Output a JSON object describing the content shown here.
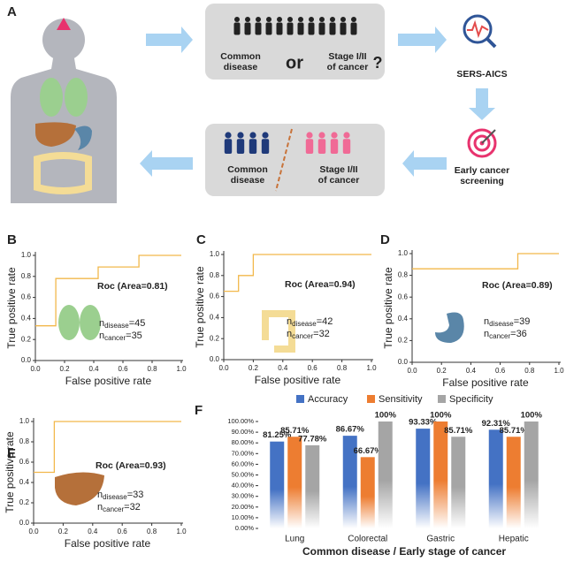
{
  "diagram": {
    "panel_label": "A",
    "query_box": {
      "left": [
        "Common",
        "disease"
      ],
      "or": "or",
      "right": [
        "Stage I/II",
        "of cancer"
      ],
      "question": "?"
    },
    "method": "SERS-AICS",
    "screening": [
      "Early cancer",
      "screening"
    ],
    "result_box": {
      "left": [
        "Common",
        "disease"
      ],
      "right": [
        "Stage I/II",
        "of cancer"
      ]
    }
  },
  "chart_data": [
    {
      "type": "line",
      "panel_label": "B",
      "xlabel": "False positive rate",
      "ylabel": "True positive rate",
      "roc_label": "Roc (Area=0.81)",
      "annotations": [
        {
          "main": "n",
          "sub": "disease",
          "rest": "=45"
        },
        {
          "main": "n",
          "sub": "cancer",
          "rest": "=35"
        }
      ],
      "color": "#f2b84b",
      "x": [
        0,
        0.14,
        0.14,
        0.43,
        0.43,
        0.71,
        0.71,
        1
      ],
      "y": [
        0.33,
        0.33,
        0.78,
        0.78,
        0.89,
        0.89,
        1,
        1
      ],
      "xlim": [
        0,
        1
      ],
      "ylim": [
        0,
        1
      ],
      "xticks": [
        {
          "value": 0,
          "label": "0.0"
        },
        0.2,
        0.4,
        0.6,
        0.8,
        {
          "value": 1,
          "label": "1.0"
        }
      ],
      "yticks": [
        {
          "value": 0,
          "label": "0.0"
        },
        0.2,
        0.4,
        0.6,
        0.8,
        {
          "value": 1,
          "label": "1.0"
        }
      ]
    },
    {
      "type": "line",
      "panel_label": "C",
      "xlabel": "False positive rate",
      "ylabel": "True positive rate",
      "roc_label": "Roc (Area=0.94)",
      "annotations": [
        {
          "main": "n",
          "sub": "disease",
          "rest": "=42"
        },
        {
          "main": "n",
          "sub": "cancer",
          "rest": "=32"
        }
      ],
      "color": "#f2b84b",
      "x": [
        0,
        0.1,
        0.1,
        0.2,
        0.2,
        1
      ],
      "y": [
        0.65,
        0.65,
        0.8,
        0.8,
        1,
        1
      ],
      "xlim": [
        0,
        1
      ],
      "ylim": [
        0,
        1
      ],
      "xticks": [
        {
          "value": 0,
          "label": "0.0"
        },
        0.2,
        0.4,
        0.6,
        0.8,
        {
          "value": 1,
          "label": "1.0"
        }
      ],
      "yticks": [
        {
          "value": 0,
          "label": "0.0"
        },
        0.2,
        0.4,
        0.6,
        0.8,
        {
          "value": 1,
          "label": "1.0"
        }
      ]
    },
    {
      "type": "line",
      "panel_label": "D",
      "xlabel": "False positive rate",
      "ylabel": "True positive rate",
      "roc_label": "Roc (Area=0.89)",
      "annotations": [
        {
          "main": "n",
          "sub": "disease",
          "rest": "=39"
        },
        {
          "main": "n",
          "sub": "cancer",
          "rest": "=36"
        }
      ],
      "color": "#f2b84b",
      "x": [
        0,
        0.72,
        0.72,
        1
      ],
      "y": [
        0.86,
        0.86,
        1,
        1
      ],
      "xlim": [
        0,
        1
      ],
      "ylim": [
        0,
        1
      ],
      "xticks": [
        {
          "value": 0,
          "label": "0.0"
        },
        0.2,
        0.4,
        0.6,
        0.8,
        {
          "value": 1,
          "label": "1.0"
        }
      ],
      "yticks": [
        {
          "value": 0,
          "label": "0.0"
        },
        0.2,
        0.4,
        0.6,
        0.8,
        {
          "value": 1,
          "label": "1.0"
        }
      ]
    },
    {
      "type": "line",
      "panel_label": "E",
      "xlabel": "False positive rate",
      "ylabel": "True positive rate",
      "roc_label": "Roc (Area=0.93)",
      "annotations": [
        {
          "main": "n",
          "sub": "disease",
          "rest": "=33"
        },
        {
          "main": "n",
          "sub": "cancer",
          "rest": "=32"
        }
      ],
      "color": "#f2b84b",
      "x": [
        0,
        0.14,
        0.14,
        1
      ],
      "y": [
        0.5,
        0.5,
        1,
        1
      ],
      "xlim": [
        0,
        1
      ],
      "ylim": [
        0,
        1
      ],
      "xticks": [
        {
          "value": 0,
          "label": "0.0"
        },
        0.2,
        0.4,
        0.6,
        0.8,
        {
          "value": 1,
          "label": "1.0"
        }
      ],
      "yticks": [
        {
          "value": 0,
          "label": "0.0"
        },
        0.2,
        0.4,
        0.6,
        0.8,
        {
          "value": 1,
          "label": "1.0"
        }
      ]
    },
    {
      "type": "bar",
      "panel_label": "F",
      "xlabel": "Common disease / Early stage of cancer",
      "categories": [
        "Lung",
        "Colorectal",
        "Gastric",
        "Hepatic"
      ],
      "series": [
        {
          "name": "Accuracy",
          "color": "#4472c4",
          "values": [
            81.25,
            86.67,
            93.33,
            92.31
          ],
          "value_labels": [
            "81.25%",
            "86.67%",
            "93.33%",
            "92.31%"
          ]
        },
        {
          "name": "Sensitivity",
          "color": "#ed7d31",
          "values": [
            85.71,
            66.67,
            100,
            85.71
          ],
          "value_labels": [
            "85.71%",
            "66.67%",
            "100%",
            "85.71%"
          ]
        },
        {
          "name": "Specificity",
          "color": "#a5a5a5",
          "values": [
            77.78,
            100,
            85.71,
            100
          ],
          "value_labels": [
            "77.78%",
            "100%",
            "85.71%",
            "100%"
          ]
        }
      ],
      "ylim": [
        0,
        100
      ],
      "yticks": [
        {
          "value": 0,
          "label": "0.00%"
        },
        {
          "value": 10,
          "label": "10.00%"
        },
        {
          "value": 20,
          "label": "20.00%"
        },
        {
          "value": 30,
          "label": "30.00%"
        },
        {
          "value": 40,
          "label": "40.00%"
        },
        {
          "value": 50,
          "label": "50.00%"
        },
        {
          "value": 60,
          "label": "60.00%"
        },
        {
          "value": 70,
          "label": "70.00%"
        },
        {
          "value": 80,
          "label": "80.00%"
        },
        {
          "value": 90,
          "label": "90.00%"
        },
        {
          "value": 100,
          "label": "100.00%"
        }
      ]
    }
  ]
}
